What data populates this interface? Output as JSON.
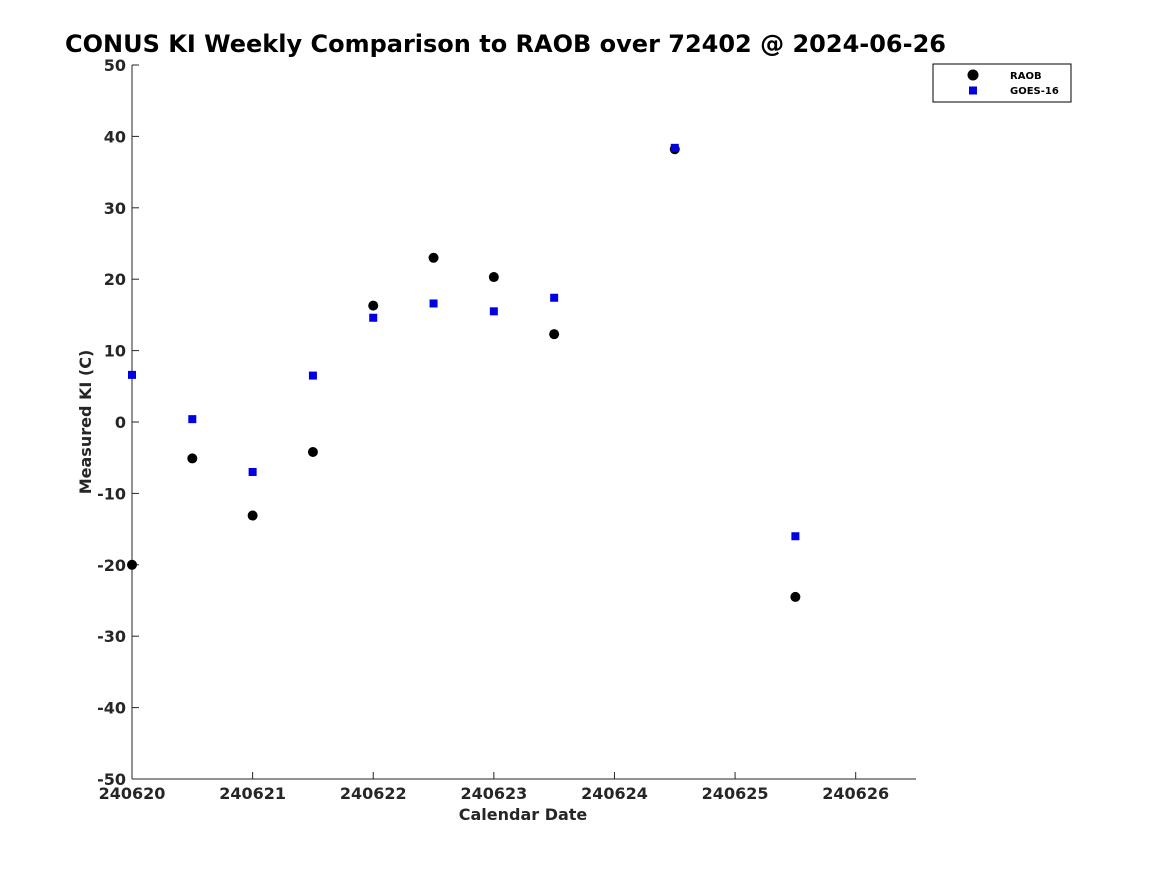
{
  "chart_data": {
    "type": "scatter",
    "title": "CONUS KI Weekly Comparison to RAOB over 72402 @ 2024-06-26",
    "xlabel": "Calendar Date",
    "ylabel": "Measured KI (C)",
    "xlim": [
      240620,
      240626.5
    ],
    "ylim": [
      -50,
      50
    ],
    "xticks": [
      240620,
      240621,
      240622,
      240623,
      240624,
      240625,
      240626
    ],
    "xtick_labels": [
      "240620",
      "240621",
      "240622",
      "240623",
      "240624",
      "240625",
      "240626"
    ],
    "yticks": [
      50,
      40,
      30,
      20,
      10,
      0,
      -10,
      -20,
      -30,
      -40,
      -50
    ],
    "ytick_labels": [
      "50",
      "40",
      "30",
      "20",
      "10",
      "0",
      "-10",
      "-20",
      "-30",
      "-40",
      "-50"
    ],
    "grid": false,
    "legend_position": "top-right",
    "series": [
      {
        "name": "RAOB",
        "marker": "circle",
        "color": "#000000",
        "x": [
          240620,
          240620.5,
          240621,
          240621.5,
          240622,
          240622.5,
          240623,
          240623.5,
          240624.5,
          240625.5
        ],
        "y": [
          -20,
          -5.1,
          -13.1,
          -4.2,
          16.3,
          23.0,
          20.3,
          12.3,
          38.2,
          -24.5
        ]
      },
      {
        "name": "GOES-16",
        "marker": "square",
        "color": "#0000e0",
        "x": [
          240620,
          240620.5,
          240621,
          240621.5,
          240622,
          240622.5,
          240623,
          240623.5,
          240624.5,
          240625.5
        ],
        "y": [
          6.6,
          0.4,
          -7.0,
          6.5,
          14.6,
          16.6,
          15.5,
          17.4,
          38.4,
          -16.0
        ]
      }
    ]
  }
}
